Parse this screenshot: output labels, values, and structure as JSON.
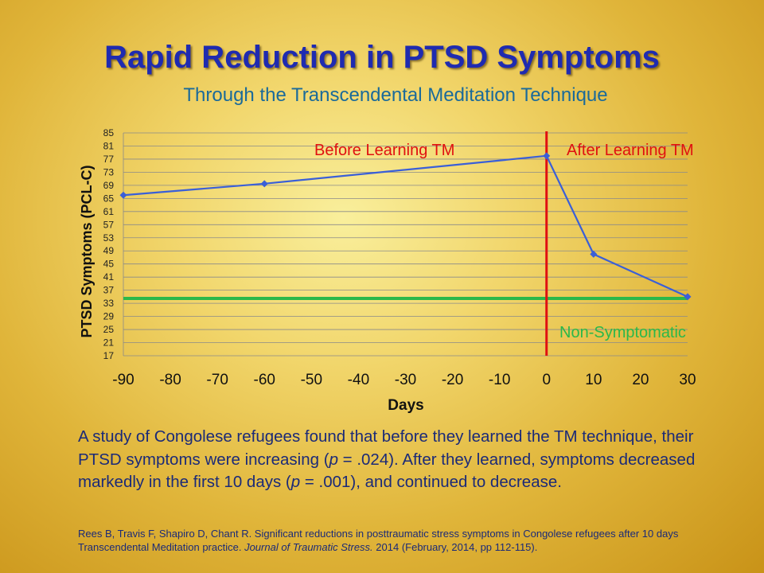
{
  "slide": {
    "title": "Rapid Reduction in PTSD Symptoms",
    "subtitle": "Through the Transcendental Meditation Technique"
  },
  "chart_data": {
    "type": "line",
    "title": "",
    "xlabel": "Days",
    "ylabel": "PTSD Symptoms (PCL-C)",
    "xlim": [
      -90,
      30
    ],
    "ylim": [
      17,
      85
    ],
    "xticks": [
      -90,
      -80,
      -70,
      -60,
      -50,
      -40,
      -30,
      -20,
      -10,
      0,
      10,
      20,
      30
    ],
    "yticks": [
      17,
      21,
      25,
      29,
      33,
      37,
      41,
      45,
      49,
      53,
      57,
      61,
      65,
      69,
      73,
      77,
      81,
      85
    ],
    "grid": "horizontal",
    "series": [
      {
        "x": [
          -90,
          -60,
          0,
          10,
          30
        ],
        "y": [
          66,
          69.5,
          78,
          48,
          35
        ],
        "color": "#3a5fd8",
        "marker": "diamond"
      }
    ],
    "reference_lines": [
      {
        "orientation": "horizontal",
        "value": 34.5,
        "color": "#2bb84a",
        "label": "Non-Symptomatic"
      },
      {
        "orientation": "vertical",
        "value": 0,
        "color": "#e01010"
      }
    ],
    "annotations": [
      {
        "text": "Before Learning TM",
        "color": "#e01010"
      },
      {
        "text": "After Learning TM",
        "color": "#e01010"
      },
      {
        "text": "Non-Symptomatic",
        "color": "#2bb84a"
      }
    ]
  },
  "body": {
    "p1": "A study of Congolese refugees found that before they learned the TM technique, their PTSD symptoms were increasing (",
    "p_letter": "p",
    "p2": " = .024). After they learned, symptoms decreased markedly in the first 10 days (",
    "p3": " = .001), and continued to decrease."
  },
  "citation": {
    "c1": "Rees B, Travis F, Shapiro D, Chant R. Significant reductions in posttraumatic stress symptoms in Congolese refugees after 10 days Transcendental  Meditation practice. ",
    "journal": "Journal of Traumatic Stress.",
    "c2": " 2014  (February, 2014, pp 112-115)."
  }
}
